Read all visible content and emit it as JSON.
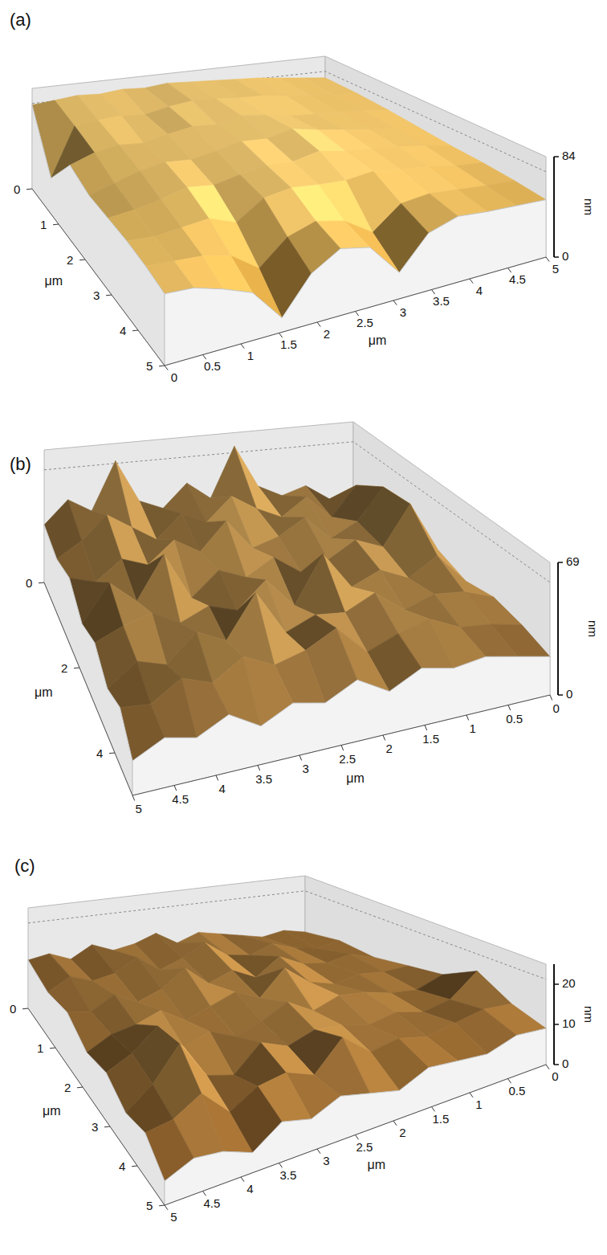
{
  "chart_data": [
    {
      "type": "surface",
      "label": "(a)",
      "x_label": "μm",
      "y_label": "μm",
      "z_label": "nm",
      "xlim": [
        0,
        5
      ],
      "xticks": [
        0,
        0.5,
        1,
        1.5,
        2,
        2.5,
        3,
        3.5,
        4,
        4.5,
        5
      ],
      "ylim": [
        0,
        5
      ],
      "yticks": [
        0,
        1,
        2,
        3,
        4,
        5
      ],
      "zlim": [
        0,
        84
      ],
      "zticks": [
        0,
        84
      ],
      "z": [
        [
          70,
          72,
          74,
          73,
          75,
          74,
          76,
          75,
          74,
          73,
          72,
          70,
          68,
          66
        ],
        [
          30,
          71,
          73,
          74,
          72,
          76,
          78,
          77,
          75,
          74,
          71,
          69,
          67,
          65
        ],
        [
          62,
          69,
          72,
          70,
          74,
          77,
          75,
          79,
          76,
          72,
          70,
          68,
          66,
          63
        ],
        [
          58,
          64,
          70,
          73,
          71,
          74,
          78,
          76,
          80,
          75,
          71,
          67,
          64,
          60
        ],
        [
          60,
          62,
          66,
          71,
          68,
          72,
          75,
          73,
          77,
          72,
          69,
          66,
          62,
          57
        ],
        [
          62,
          60,
          62,
          64,
          55,
          70,
          73,
          70,
          68,
          70,
          66,
          63,
          58,
          55
        ],
        [
          62,
          60,
          58,
          52,
          35,
          55,
          62,
          56,
          40,
          58,
          60,
          57,
          54,
          52
        ],
        [
          60,
          58,
          50,
          40,
          12,
          42,
          56,
          50,
          22,
          48,
          55,
          52,
          50,
          48
        ]
      ]
    },
    {
      "type": "surface",
      "label": "(b)",
      "x_label": "μm",
      "y_label": "μm",
      "z_label": "nm",
      "xlim": [
        5,
        0
      ],
      "xticks": [
        0,
        0.5,
        1,
        1.5,
        2,
        2.5,
        3,
        3.5,
        4,
        4.5,
        5
      ],
      "ylim": [
        0,
        5
      ],
      "yticks": [
        0,
        2,
        4
      ],
      "zlim": [
        0,
        69
      ],
      "zticks": [
        0,
        69
      ],
      "z": [
        [
          30,
          42,
          35,
          60,
          38,
          33,
          45,
          36,
          62,
          40,
          34,
          38,
          30,
          28
        ],
        [
          28,
          36,
          48,
          40,
          32,
          44,
          38,
          50,
          42,
          36,
          45,
          33,
          48,
          30
        ],
        [
          34,
          30,
          40,
          35,
          46,
          38,
          52,
          36,
          40,
          48,
          35,
          42,
          58,
          32
        ],
        [
          26,
          45,
          33,
          55,
          30,
          42,
          36,
          44,
          34,
          38,
          46,
          40,
          60,
          34
        ],
        [
          32,
          38,
          42,
          34,
          40,
          35,
          48,
          32,
          56,
          36,
          42,
          35,
          44,
          28
        ],
        [
          24,
          35,
          30,
          44,
          36,
          58,
          34,
          40,
          38,
          45,
          33,
          38,
          36,
          30
        ],
        [
          30,
          28,
          38,
          32,
          42,
          34,
          38,
          46,
          30,
          36,
          40,
          32,
          30,
          26
        ],
        [
          18,
          26,
          22,
          30,
          20,
          28,
          24,
          32,
          22,
          30,
          26,
          28,
          24,
          20
        ]
      ]
    },
    {
      "type": "surface",
      "label": "(c)",
      "x_label": "μm",
      "y_label": "μm",
      "z_label": "nm",
      "xlim": [
        5,
        0
      ],
      "xticks": [
        0,
        0.5,
        1,
        1.5,
        2,
        2.5,
        3,
        3.5,
        4,
        4.5,
        5
      ],
      "ylim": [
        0,
        5
      ],
      "yticks": [
        0,
        1,
        2,
        3,
        4,
        5
      ],
      "zlim": [
        0,
        25
      ],
      "zticks": [
        0,
        10,
        20
      ],
      "z": [
        [
          12,
          13,
          11,
          14,
          12,
          13,
          15,
          12,
          14,
          13,
          12,
          11,
          12,
          11
        ],
        [
          11,
          14,
          12,
          13,
          16,
          12,
          14,
          17,
          13,
          12,
          14,
          12,
          11,
          12
        ],
        [
          13,
          12,
          15,
          12,
          14,
          18,
          13,
          15,
          12,
          16,
          13,
          12,
          13,
          11
        ],
        [
          10,
          13,
          14,
          16,
          12,
          14,
          16,
          13,
          19,
          14,
          12,
          13,
          12,
          12
        ],
        [
          12,
          15,
          20,
          13,
          15,
          12,
          14,
          17,
          13,
          15,
          14,
          12,
          11,
          13
        ],
        [
          9,
          14,
          22,
          12,
          10,
          16,
          13,
          15,
          14,
          12,
          13,
          11,
          12,
          17
        ],
        [
          11,
          12,
          16,
          9,
          13,
          14,
          11,
          18,
          12,
          13,
          11,
          12,
          13,
          12
        ],
        [
          6,
          9,
          8,
          5,
          10,
          8,
          11,
          9,
          7,
          10,
          9,
          8,
          10,
          9
        ]
      ]
    }
  ]
}
